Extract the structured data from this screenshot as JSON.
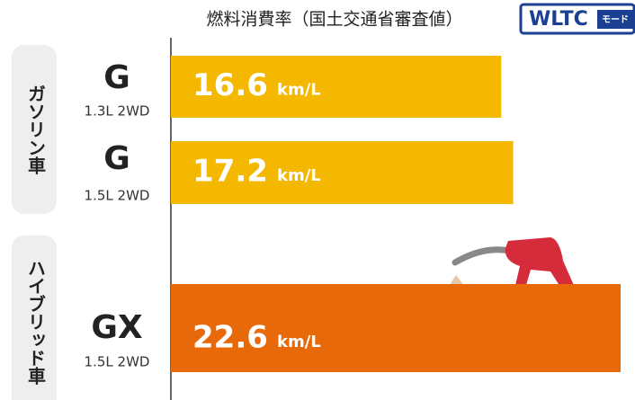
{
  "chart_data": {
    "type": "bar",
    "orientation": "horizontal",
    "title": "燃料消費率（国土交通省審査値）",
    "badge": "WLTC",
    "badge_sub": "モード",
    "group_labels": [
      "ガソリン車",
      "ハイブリッド車"
    ],
    "categories": [
      "G",
      "G",
      "GX"
    ],
    "subcategories": [
      "1.3L 2WD",
      "1.5L 2WD",
      "1.5L 2WD"
    ],
    "values": [
      16.6,
      17.2,
      22.6
    ],
    "value_labels": [
      "16.6",
      "17.2",
      "22.6"
    ],
    "unit": "km/L",
    "colors": [
      "#f5b800",
      "#f5b800",
      "#e8690a"
    ]
  }
}
